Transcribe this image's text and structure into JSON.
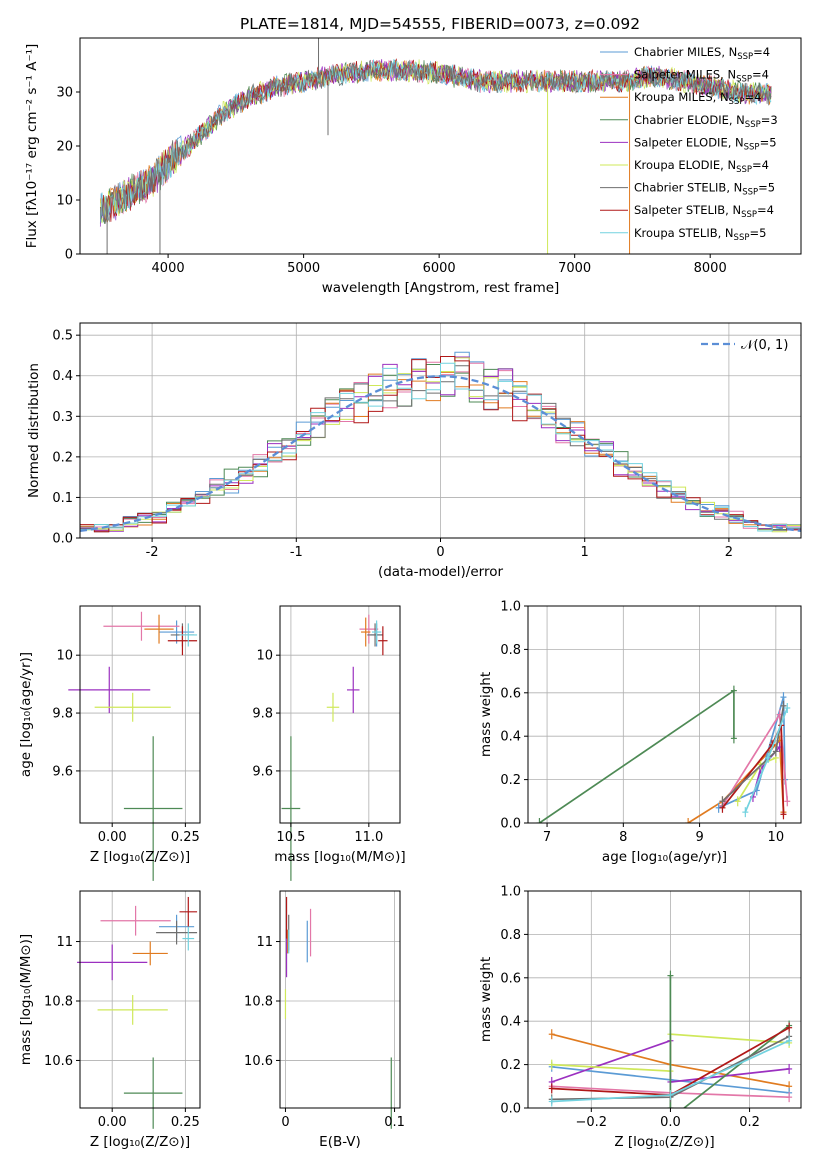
{
  "figure_title": "PLATE=1814, MJD=54555, FIBERID=0073, z=0.092",
  "colors": {
    "Chabrier MILES": "#5b9bd5",
    "Salpeter MILES": "#e377a8",
    "Kroupa MILES": "#e07b20",
    "Chabrier ELODIE": "#4e8a55",
    "Salpeter ELODIE": "#9b30c0",
    "Kroupa ELODIE": "#cfe85a",
    "Chabrier STELIB": "#6f6f6f",
    "Salpeter STELIB": "#b01818",
    "Kroupa STELIB": "#72d2df",
    "panel_b_blue": "#5b6fd6",
    "gaussian": "#5b8ed6"
  },
  "chart_data": [
    {
      "id": "spectrum",
      "type": "line",
      "title": "",
      "xlabel": "wavelength [Angstrom, rest frame]",
      "ylabel": "Flux [fλ10⁻¹⁷ erg cm⁻² s⁻¹ A⁻¹]",
      "xlim": [
        3350,
        8670
      ],
      "ylim": [
        0,
        40
      ],
      "xticks": [
        4000,
        5000,
        6000,
        7000,
        8000
      ],
      "yticks": [
        0,
        10,
        20,
        30
      ],
      "grid": false,
      "legend": "top-right",
      "legend_entries": [
        {
          "name": "Chabrier MILES, N",
          "sub": "SSP",
          "n": "=4"
        },
        {
          "name": "Salpeter MILES, N",
          "sub": "SSP",
          "n": "=4"
        },
        {
          "name": "Kroupa MILES, N",
          "sub": "SSP",
          "n": "=4"
        },
        {
          "name": "Chabrier ELODIE, N",
          "sub": "SSP",
          "n": "=3"
        },
        {
          "name": "Salpeter ELODIE, N",
          "sub": "SSP",
          "n": "=5"
        },
        {
          "name": "Kroupa ELODIE, N",
          "sub": "SSP",
          "n": "=4"
        },
        {
          "name": "Chabrier STELIB, N",
          "sub": "SSP",
          "n": "=5"
        },
        {
          "name": "Salpeter STELIB, N",
          "sub": "SSP",
          "n": "=4"
        },
        {
          "name": "Kroupa STELIB, N",
          "sub": "SSP",
          "n": "=5"
        }
      ],
      "continuum": [
        [
          3500,
          8
        ],
        [
          3700,
          11
        ],
        [
          3900,
          14
        ],
        [
          4000,
          17
        ],
        [
          4200,
          21
        ],
        [
          4400,
          26
        ],
        [
          4600,
          29
        ],
        [
          4800,
          31
        ],
        [
          5000,
          32
        ],
        [
          5200,
          33
        ],
        [
          5500,
          34
        ],
        [
          5800,
          34
        ],
        [
          6000,
          33.5
        ],
        [
          6300,
          32
        ],
        [
          6600,
          32
        ],
        [
          7000,
          32
        ],
        [
          7400,
          32
        ],
        [
          7600,
          33
        ],
        [
          7800,
          32
        ],
        [
          8000,
          31
        ],
        [
          8200,
          30
        ],
        [
          8450,
          29.5
        ]
      ],
      "features": [
        {
          "x": 3550,
          "y": 0
        },
        {
          "x": 3940,
          "y": 0
        },
        {
          "x": 5110,
          "y": 40
        },
        {
          "x": 5180,
          "y": 22
        },
        {
          "x": 6800,
          "y": 0
        },
        {
          "x": 7405,
          "y": 0
        }
      ]
    },
    {
      "id": "residuals",
      "type": "histogram",
      "xlabel": "(data-model)/error",
      "ylabel": "Normed distribution",
      "xlim": [
        -2.5,
        2.5
      ],
      "ylim": [
        0,
        0.53
      ],
      "xticks": [
        -2,
        -1,
        0,
        1,
        2
      ],
      "yticks": [
        0.0,
        0.1,
        0.2,
        0.3,
        0.4,
        0.5
      ],
      "grid": true,
      "legend": "top-right",
      "gaussian_label": "𝒩(0, 1)",
      "bin_width": 0.1
    },
    {
      "id": "age_vs_Z",
      "type": "errorbar",
      "xlabel": "Z [log₁₀(Z/Z⊙)]",
      "ylabel": "age  [log₁₀(age/yr)]",
      "xlim": [
        -0.11,
        0.3
      ],
      "ylim": [
        9.42,
        10.17
      ],
      "xticks": [
        0.0,
        0.25
      ],
      "xticklabels": [
        "0.00",
        "0.25"
      ],
      "yticks": [
        9.6,
        9.8,
        10.0
      ],
      "points": [
        {
          "m": "Chabrier MILES",
          "x": 0.22,
          "y": 10.08,
          "xe": 0.06,
          "ye": 0.04
        },
        {
          "m": "Salpeter MILES",
          "x": 0.1,
          "y": 10.1,
          "xe": 0.13,
          "ye": 0.05
        },
        {
          "m": "Kroupa MILES",
          "x": 0.16,
          "y": 10.09,
          "xe": 0.05,
          "ye": 0.05
        },
        {
          "m": "Chabrier ELODIE",
          "x": 0.14,
          "y": 9.47,
          "xe": 0.1,
          "ye": 0.25
        },
        {
          "m": "Salpeter ELODIE",
          "x": -0.01,
          "y": 9.88,
          "xe": 0.14,
          "ye": 0.08
        },
        {
          "m": "Kroupa ELODIE",
          "x": 0.07,
          "y": 9.82,
          "xe": 0.13,
          "ye": 0.05
        },
        {
          "m": "Chabrier STELIB",
          "x": 0.24,
          "y": 10.07,
          "xe": 0.04,
          "ye": 0.04
        },
        {
          "m": "Salpeter STELIB",
          "x": 0.24,
          "y": 10.05,
          "xe": 0.05,
          "ye": 0.05
        },
        {
          "m": "Kroupa STELIB",
          "x": 0.26,
          "y": 10.07,
          "xe": 0.03,
          "ye": 0.04
        }
      ]
    },
    {
      "id": "age_vs_mass",
      "type": "errorbar",
      "xlabel": "mass [log₁₀(M/M⊙)]",
      "ylabel": "",
      "xlim": [
        10.43,
        11.2
      ],
      "ylim": [
        9.42,
        10.17
      ],
      "xticks": [
        10.5,
        11.0
      ],
      "xticklabels": [
        "10.5",
        "11.0"
      ],
      "yticks": [
        9.6,
        9.8,
        10.0
      ],
      "points": [
        {
          "m": "Chabrier MILES",
          "x": 11.05,
          "y": 10.07,
          "xe": 0.04,
          "ye": 0.04
        },
        {
          "m": "Salpeter MILES",
          "x": 11.0,
          "y": 10.09,
          "xe": 0.06,
          "ye": 0.05
        },
        {
          "m": "Kroupa MILES",
          "x": 10.98,
          "y": 10.08,
          "xe": 0.03,
          "ye": 0.05
        },
        {
          "m": "Chabrier ELODIE",
          "x": 10.5,
          "y": 9.47,
          "xe": 0.06,
          "ye": 0.25
        },
        {
          "m": "Salpeter ELODIE",
          "x": 10.9,
          "y": 9.88,
          "xe": 0.04,
          "ye": 0.08
        },
        {
          "m": "Kroupa ELODIE",
          "x": 10.77,
          "y": 9.82,
          "xe": 0.04,
          "ye": 0.05
        },
        {
          "m": "Chabrier STELIB",
          "x": 11.04,
          "y": 10.07,
          "xe": 0.05,
          "ye": 0.04
        },
        {
          "m": "Salpeter STELIB",
          "x": 11.09,
          "y": 10.05,
          "xe": 0.03,
          "ye": 0.05
        },
        {
          "m": "Kroupa STELIB",
          "x": 11.05,
          "y": 10.08,
          "xe": 0.03,
          "ye": 0.04
        }
      ]
    },
    {
      "id": "weights_vs_age",
      "type": "line",
      "xlabel": "age  [log₁₀(age/yr)]",
      "ylabel": "mass weight",
      "xlim": [
        6.75,
        10.33
      ],
      "ylim": [
        0,
        1.0
      ],
      "xticks": [
        7,
        8,
        9,
        10
      ],
      "xticklabels": [
        "7",
        "8",
        "9",
        "10"
      ],
      "yticks": [
        0.0,
        0.2,
        0.4,
        0.6,
        0.8,
        1.0
      ],
      "grid": true,
      "series": [
        {
          "m": "Chabrier ELODIE",
          "points": [
            [
              6.9,
              0.0
            ],
            [
              9.45,
              0.61
            ],
            [
              9.45,
              0.39
            ]
          ]
        },
        {
          "m": "Kroupa MILES",
          "points": [
            [
              8.85,
              0.0
            ],
            [
              9.3,
              0.1
            ],
            [
              10.05,
              0.38
            ],
            [
              10.1,
              0.05
            ]
          ]
        },
        {
          "m": "Chabrier MILES",
          "points": [
            [
              9.25,
              0.07
            ],
            [
              9.75,
              0.15
            ],
            [
              10.1,
              0.58
            ],
            [
              10.12,
              0.2
            ]
          ]
        },
        {
          "m": "Salpeter MILES",
          "points": [
            [
              9.3,
              0.08
            ],
            [
              10.05,
              0.5
            ],
            [
              10.15,
              0.1
            ]
          ]
        },
        {
          "m": "Salpeter ELODIE",
          "points": [
            [
              9.7,
              0.12
            ],
            [
              9.8,
              0.25
            ],
            [
              10.05,
              0.35
            ]
          ]
        },
        {
          "m": "Kroupa ELODIE",
          "points": [
            [
              9.5,
              0.1
            ],
            [
              9.8,
              0.27
            ],
            [
              10.0,
              0.3
            ]
          ]
        },
        {
          "m": "Salpeter STELIB",
          "points": [
            [
              9.3,
              0.07
            ],
            [
              9.95,
              0.36
            ],
            [
              10.07,
              0.45
            ],
            [
              10.1,
              0.04
            ]
          ]
        },
        {
          "m": "Chabrier STELIB",
          "points": [
            [
              9.3,
              0.1
            ],
            [
              10.0,
              0.33
            ],
            [
              10.1,
              0.54
            ]
          ]
        },
        {
          "m": "Kroupa STELIB",
          "points": [
            [
              9.6,
              0.05
            ],
            [
              9.9,
              0.3
            ],
            [
              10.15,
              0.53
            ]
          ]
        }
      ]
    },
    {
      "id": "mass_vs_Z",
      "type": "errorbar",
      "xlabel": "Z [log₁₀(Z/Z⊙)]",
      "ylabel": "mass [log₁₀(M/M⊙)]",
      "xlim": [
        -0.11,
        0.3
      ],
      "ylim": [
        10.44,
        11.17
      ],
      "xticks": [
        0.0,
        0.25
      ],
      "xticklabels": [
        "0.00",
        "0.25"
      ],
      "yticks": [
        10.6,
        10.8,
        11.0
      ],
      "points": [
        {
          "m": "Chabrier MILES",
          "x": 0.22,
          "y": 11.05,
          "xe": 0.06,
          "ye": 0.04
        },
        {
          "m": "Salpeter MILES",
          "x": 0.08,
          "y": 11.07,
          "xe": 0.12,
          "ye": 0.05
        },
        {
          "m": "Kroupa MILES",
          "x": 0.13,
          "y": 10.96,
          "xe": 0.06,
          "ye": 0.04
        },
        {
          "m": "Chabrier ELODIE",
          "x": 0.14,
          "y": 10.49,
          "xe": 0.1,
          "ye": 0.12
        },
        {
          "m": "Salpeter ELODIE",
          "x": 0.0,
          "y": 10.93,
          "xe": 0.12,
          "ye": 0.06
        },
        {
          "m": "Kroupa ELODIE",
          "x": 0.07,
          "y": 10.77,
          "xe": 0.12,
          "ye": 0.05
        },
        {
          "m": "Chabrier STELIB",
          "x": 0.22,
          "y": 11.03,
          "xe": 0.07,
          "ye": 0.04
        },
        {
          "m": "Salpeter STELIB",
          "x": 0.26,
          "y": 11.1,
          "xe": 0.03,
          "ye": 0.05
        },
        {
          "m": "Kroupa STELIB",
          "x": 0.26,
          "y": 11.01,
          "xe": 0.02,
          "ye": 0.04
        }
      ]
    },
    {
      "id": "mass_vs_ebv",
      "type": "errorbar",
      "xlabel": "E(B-V)",
      "ylabel": "",
      "xlim": [
        -0.005,
        0.105
      ],
      "ylim": [
        10.44,
        11.17
      ],
      "xticks": [
        0.0,
        0.1
      ],
      "xticklabels": [
        "0",
        "0.1"
      ],
      "yticks": [
        10.6,
        10.8,
        11.0
      ],
      "points": [
        {
          "m": "Chabrier MILES",
          "x": 0.02,
          "y": 11.0,
          "xe": 0,
          "ye": 0.07
        },
        {
          "m": "Salpeter MILES",
          "x": 0.023,
          "y": 11.03,
          "xe": 0,
          "ye": 0.08
        },
        {
          "m": "Kroupa MILES",
          "x": 0.002,
          "y": 11.0,
          "xe": 0,
          "ye": 0.04
        },
        {
          "m": "Chabrier ELODIE",
          "x": 0.097,
          "y": 10.49,
          "xe": 0,
          "ye": 0.12
        },
        {
          "m": "Salpeter ELODIE",
          "x": 0.001,
          "y": 10.96,
          "xe": 0,
          "ye": 0.08
        },
        {
          "m": "Kroupa ELODIE",
          "x": 0.0,
          "y": 10.79,
          "xe": 0,
          "ye": 0.05
        },
        {
          "m": "Chabrier STELIB",
          "x": 0.003,
          "y": 11.03,
          "xe": 0,
          "ye": 0.06
        },
        {
          "m": "Salpeter STELIB",
          "x": 0.001,
          "y": 11.08,
          "xe": 0,
          "ye": 0.07
        },
        {
          "m": "Kroupa STELIB",
          "x": 0.003,
          "y": 11.0,
          "xe": 0,
          "ye": 0.04
        }
      ]
    },
    {
      "id": "weights_vs_Z",
      "type": "line",
      "xlabel": "Z [log₁₀(Z/Z⊙)]",
      "ylabel": "mass weight",
      "xlim": [
        -0.36,
        0.33
      ],
      "ylim": [
        0,
        1.0
      ],
      "xticks": [
        -0.2,
        0.0,
        0.2
      ],
      "xticklabels": [
        "−0.2",
        "0.0",
        "0.2"
      ],
      "yticks": [
        0.0,
        0.2,
        0.4,
        0.6,
        0.8,
        1.0
      ],
      "grid": true,
      "series": [
        {
          "m": "Kroupa MILES",
          "points": [
            [
              -0.3,
              0.34
            ],
            [
              0.0,
              0.2
            ],
            [
              0.3,
              0.1
            ]
          ]
        },
        {
          "m": "Chabrier MILES",
          "points": [
            [
              -0.3,
              0.19
            ],
            [
              0.0,
              0.13
            ],
            [
              0.3,
              0.07
            ]
          ]
        },
        {
          "m": "Salpeter MILES",
          "points": [
            [
              -0.3,
              0.1
            ],
            [
              0.0,
              0.07
            ],
            [
              0.3,
              0.05
            ]
          ]
        },
        {
          "m": "Salpeter ELODIE",
          "points": [
            [
              -0.3,
              0.12
            ],
            [
              0.0,
              0.31
            ],
            [
              0.0,
              0.12
            ],
            [
              0.3,
              0.18
            ]
          ]
        },
        {
          "m": "Kroupa ELODIE",
          "points": [
            [
              -0.3,
              0.2
            ],
            [
              0.0,
              0.17
            ],
            [
              0.0,
              0.34
            ],
            [
              0.3,
              0.3
            ]
          ]
        },
        {
          "m": "Chabrier ELODIE",
          "points": [
            [
              0.0,
              0.61
            ],
            [
              0.0,
              0.0
            ],
            [
              0.0,
              -0.05
            ],
            [
              0.3,
              0.38
            ]
          ]
        },
        {
          "m": "Salpeter STELIB",
          "points": [
            [
              -0.3,
              0.09
            ],
            [
              0.0,
              0.06
            ],
            [
              0.3,
              0.37
            ]
          ]
        },
        {
          "m": "Chabrier STELIB",
          "points": [
            [
              -0.3,
              0.04
            ],
            [
              0.0,
              0.05
            ],
            [
              0.3,
              0.33
            ]
          ]
        },
        {
          "m": "Kroupa STELIB",
          "points": [
            [
              -0.3,
              0.03
            ],
            [
              0.0,
              0.06
            ],
            [
              0.3,
              0.31
            ]
          ]
        }
      ]
    }
  ]
}
